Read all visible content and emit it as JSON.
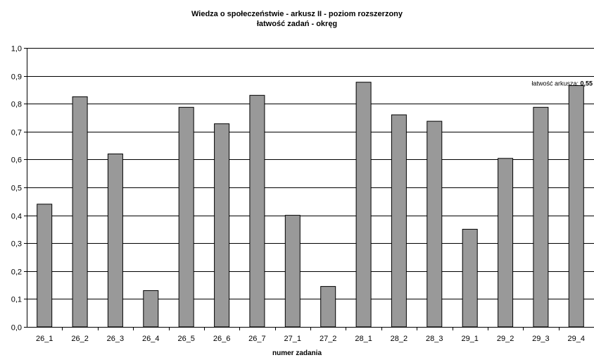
{
  "chart_data": {
    "type": "bar",
    "title": "Wiedza o społeczeństwie - arkusz II - poziom rozszerzony",
    "subtitle": "łatwość zadań - okręg",
    "xlabel": "numer zadania",
    "ylabel": "",
    "ylim": [
      0,
      1.0
    ],
    "ytick_step": 0.1,
    "ytick_labels": [
      "0,0",
      "0,1",
      "0,2",
      "0,3",
      "0,4",
      "0,5",
      "0,6",
      "0,7",
      "0,8",
      "0,9",
      "1,0"
    ],
    "grid": true,
    "categories": [
      "26_1",
      "26_2",
      "26_3",
      "26_4",
      "26_5",
      "26_6",
      "26_7",
      "27_1",
      "27_2",
      "28_1",
      "28_2",
      "28_3",
      "29_1",
      "29_2",
      "29_3",
      "29_4"
    ],
    "values": [
      0.44,
      0.825,
      0.62,
      0.13,
      0.787,
      0.728,
      0.83,
      0.4,
      0.145,
      0.877,
      0.76,
      0.737,
      0.35,
      0.604,
      0.787,
      0.865
    ],
    "bar_color": "#999999",
    "annotation": {
      "label": "łatwość arkusza: ",
      "value_text": "0,55",
      "value": 0.55
    }
  }
}
